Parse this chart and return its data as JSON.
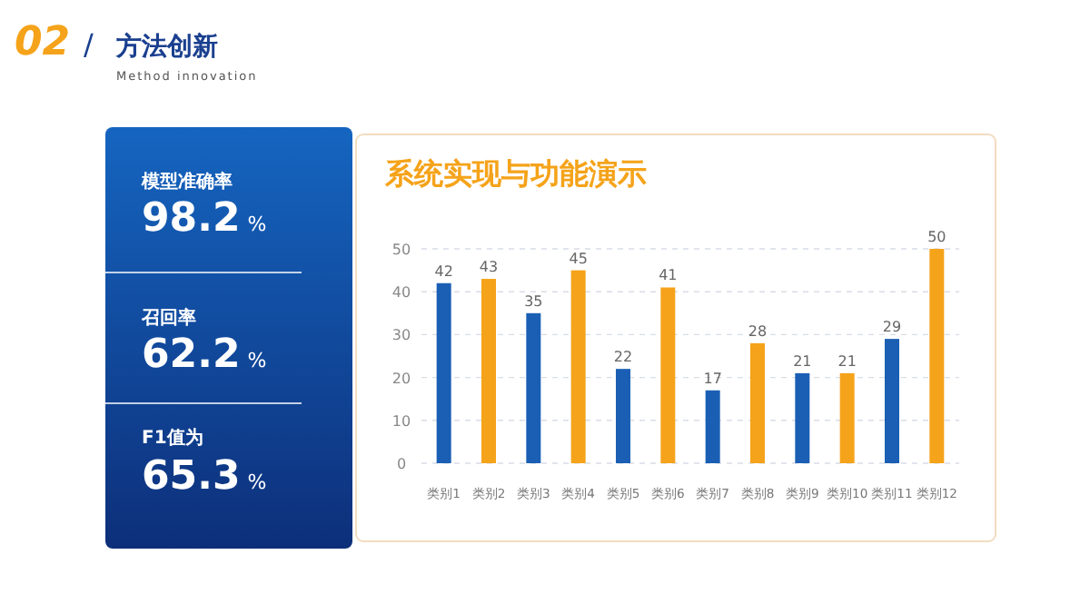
{
  "chart_data": [
    {
      "type": "other",
      "annotations": [
        "02",
        "/",
        "方法创新",
        "Method innovation",
        "模型准确率",
        "98.2",
        "%",
        "召回率",
        "62.2",
        "%",
        "F1值为",
        "65.3",
        "%"
      ]
    },
    {
      "type": "bar",
      "title": "系统实现与功能演示",
      "categories": [
        "类别1",
        "类别2",
        "类别3",
        "类别4",
        "类别5",
        "类别6",
        "类别7",
        "类别8",
        "类别9",
        "类别10",
        "类别11",
        "类别12"
      ],
      "values": [
        42,
        43,
        35,
        45,
        22,
        41,
        17,
        28,
        21,
        21,
        29,
        50
      ],
      "colors": [
        "#1a5fb4",
        "#f5a31a",
        "#1a5fb4",
        "#f5a31a",
        "#1a5fb4",
        "#f5a31a",
        "#1a5fb4",
        "#f5a31a",
        "#1a5fb4",
        "#f5a31a",
        "#1a5fb4",
        "#f5a31a"
      ],
      "ylim": [
        0,
        50
      ],
      "yticks": [
        0,
        10,
        20,
        30,
        40,
        50
      ],
      "grid": "y",
      "data_labels": true
    }
  ]
}
